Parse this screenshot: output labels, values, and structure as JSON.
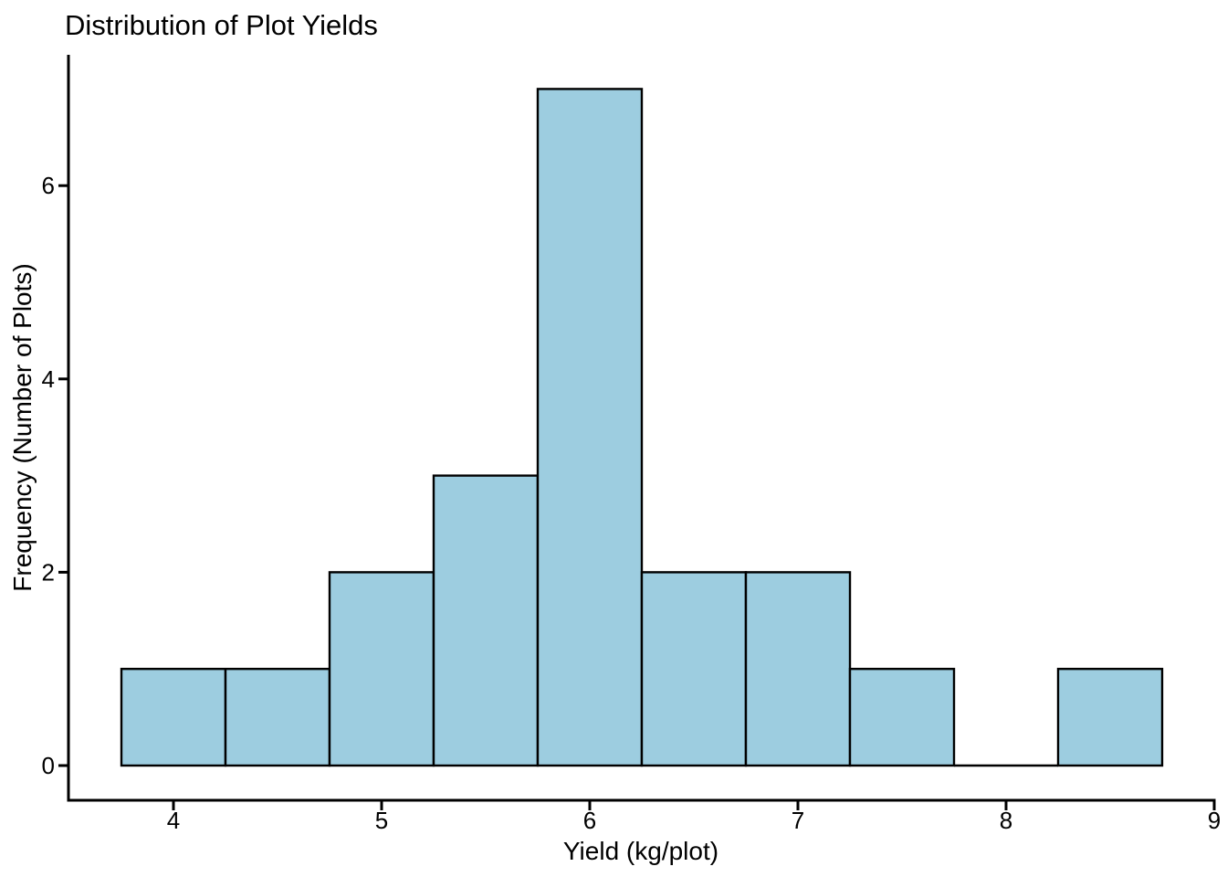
{
  "chart_data": {
    "type": "bar",
    "subtype": "histogram",
    "title": "Distribution of Plot Yields",
    "xlabel": "Yield (kg/plot)",
    "ylabel": "Frequency (Number of Plots)",
    "bin_edges": [
      3.75,
      4.25,
      4.75,
      5.25,
      5.75,
      6.25,
      6.75,
      7.25,
      7.75,
      8.25,
      8.75
    ],
    "counts": [
      1,
      1,
      2,
      3,
      7,
      2,
      2,
      1,
      0,
      1
    ],
    "x_ticks": [
      4,
      5,
      6,
      7,
      8,
      9
    ],
    "y_ticks": [
      0,
      2,
      4,
      6
    ],
    "xlim": [
      3.5,
      9
    ],
    "ylim": [
      0,
      7.37
    ],
    "grid": false,
    "legend": null,
    "colors": {
      "bar_fill": "#9DCDE0",
      "bar_stroke": "#000000",
      "axis": "#000000",
      "text": "#000000",
      "background": "#FFFFFF"
    }
  }
}
